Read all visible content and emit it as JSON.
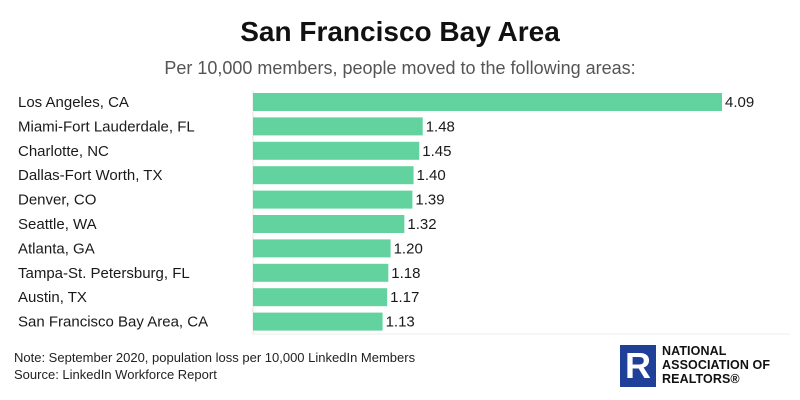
{
  "chart_data": {
    "type": "bar",
    "orientation": "horizontal",
    "title": "San Francisco Bay Area",
    "subtitle": "Per 10,000 members, people moved to the following areas:",
    "categories": [
      "Los Angeles, CA",
      "Miami-Fort Lauderdale, FL",
      "Charlotte, NC",
      "Dallas-Fort Worth, TX",
      "Denver, CO",
      "Seattle, WA",
      "Atlanta, GA",
      "Tampa-St. Petersburg, FL",
      "Austin, TX",
      "San Francisco Bay Area, CA"
    ],
    "values": [
      4.09,
      1.48,
      1.45,
      1.4,
      1.39,
      1.32,
      1.2,
      1.18,
      1.17,
      1.13
    ],
    "value_labels": [
      "4.09",
      "1.48",
      "1.45",
      "1.40",
      "1.39",
      "1.32",
      "1.20",
      "1.18",
      "1.17",
      "1.13"
    ],
    "bar_color": "#62d39f",
    "grid": false,
    "xlim": [
      0,
      4.09
    ]
  },
  "footnote": {
    "note": "Note: September 2020, population loss per 10,000 LinkedIn Members",
    "source": "Source: LinkedIn Workforce Report"
  },
  "logo": {
    "mark": "R",
    "line1": "NATIONAL",
    "line2": "ASSOCIATION OF",
    "line3": "REALTORS®",
    "color": "#1f3f99"
  }
}
